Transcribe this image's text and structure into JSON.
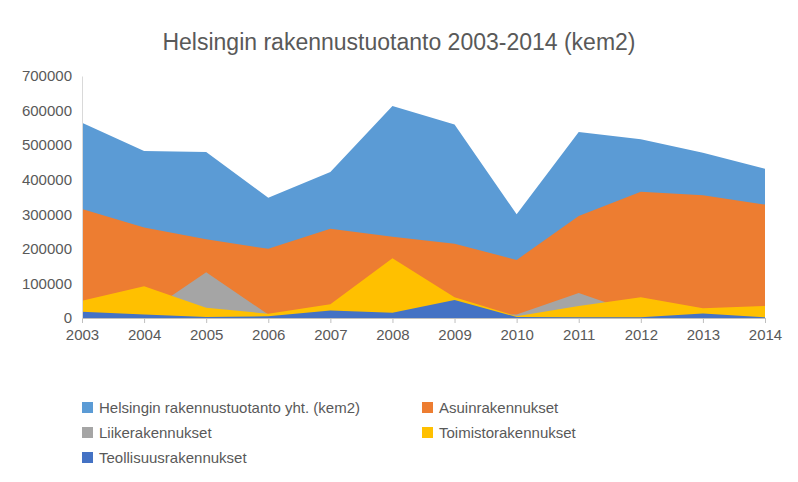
{
  "chart_data": {
    "type": "area",
    "title": "Helsingin rakennustuotanto 2003-2014 (kem2)",
    "categories": [
      "2003",
      "2004",
      "2005",
      "2006",
      "2007",
      "2008",
      "2009",
      "2010",
      "2011",
      "2012",
      "2013",
      "2014"
    ],
    "stacked": false,
    "grid": false,
    "legend": "bottom",
    "ylim": [
      0,
      700000
    ],
    "yticks": [
      0,
      100000,
      200000,
      300000,
      400000,
      500000,
      600000,
      700000
    ],
    "series": [
      {
        "name": "Helsingin rakennustuotanto yht. (kem2)",
        "color": "#5b9bd5",
        "values": [
          565000,
          483000,
          480000,
          348000,
          422000,
          613000,
          560000,
          300000,
          538000,
          517000,
          478000,
          432000
        ]
      },
      {
        "name": "Asuinrakennukset",
        "color": "#ed7d31",
        "values": [
          315000,
          262000,
          228000,
          200000,
          258000,
          235000,
          215000,
          168000,
          295000,
          365000,
          355000,
          328000
        ]
      },
      {
        "name": "Liikerakennukset",
        "color": "#a5a5a5",
        "values": [
          10000,
          10000,
          132000,
          10000,
          15000,
          5000,
          10000,
          10000,
          72000,
          10000,
          10000,
          5000
        ]
      },
      {
        "name": "Toimistorakennukset",
        "color": "#ffc000",
        "values": [
          50000,
          92000,
          30000,
          12000,
          40000,
          173000,
          60000,
          5000,
          35000,
          60000,
          28000,
          35000
        ]
      },
      {
        "name": "Teollisuusrakennukset",
        "color": "#4472c4",
        "values": [
          18000,
          10000,
          3000,
          5000,
          22000,
          15000,
          52000,
          3000,
          2000,
          2000,
          13000,
          2000
        ]
      }
    ]
  }
}
